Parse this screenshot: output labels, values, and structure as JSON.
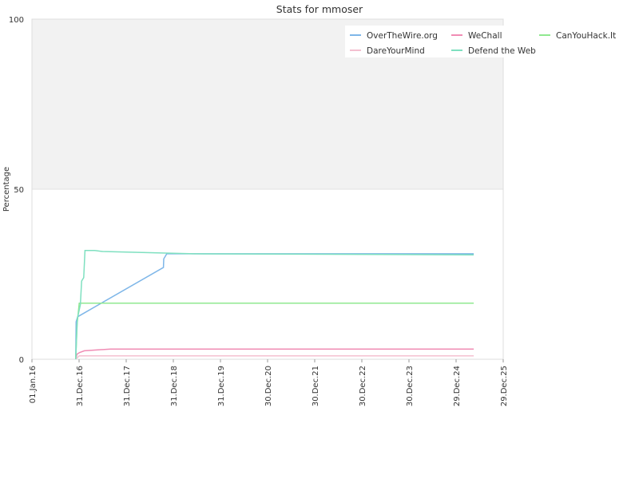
{
  "chart_data": {
    "type": "line",
    "title": "Stats for mmoser",
    "xlabel": "",
    "ylabel": "Percentage",
    "xlim": [
      "2016-01-01",
      "2025-12-29"
    ],
    "ylim": [
      0,
      100
    ],
    "y_ticks": [
      0,
      50,
      100
    ],
    "x_ticks": [
      {
        "date": "2016-01-01",
        "label": "01.Jan.16"
      },
      {
        "date": "2016-12-31",
        "label": "31.Dec.16"
      },
      {
        "date": "2017-12-31",
        "label": "31.Dec.17"
      },
      {
        "date": "2018-12-31",
        "label": "31.Dec.18"
      },
      {
        "date": "2019-12-31",
        "label": "31.Dec.19"
      },
      {
        "date": "2020-12-30",
        "label": "30.Dec.20"
      },
      {
        "date": "2021-12-30",
        "label": "30.Dec.21"
      },
      {
        "date": "2022-12-30",
        "label": "30.Dec.22"
      },
      {
        "date": "2023-12-30",
        "label": "30.Dec.23"
      },
      {
        "date": "2024-12-29",
        "label": "29.Dec.24"
      },
      {
        "date": "2025-12-29",
        "label": "29.Dec.25"
      }
    ],
    "bands": [
      {
        "from": 50,
        "to": 100,
        "color": "#f2f2f2"
      }
    ],
    "grid": true,
    "legend_position": "top-right",
    "series": [
      {
        "name": "OverTheWire.org",
        "color": "#7eb6e8",
        "points": [
          [
            "2016-12-05",
            0
          ],
          [
            "2016-12-08",
            11
          ],
          [
            "2016-12-20",
            12.5
          ],
          [
            "2018-10-15",
            27
          ],
          [
            "2018-10-18",
            29.5
          ],
          [
            "2018-11-10",
            31
          ],
          [
            "2025-05-15",
            31
          ]
        ]
      },
      {
        "name": "WeChall",
        "color": "#f08cb4",
        "points": [
          [
            "2016-12-05",
            0
          ],
          [
            "2016-12-15",
            1.5
          ],
          [
            "2017-01-05",
            2
          ],
          [
            "2017-02-10",
            2.5
          ],
          [
            "2017-05-01",
            2.7
          ],
          [
            "2017-09-01",
            3
          ],
          [
            "2025-05-15",
            3
          ]
        ]
      },
      {
        "name": "CanYouHack.It",
        "color": "#90e890",
        "points": [
          [
            "2016-12-05",
            0
          ],
          [
            "2016-12-15",
            10
          ],
          [
            "2017-01-01",
            16.5
          ],
          [
            "2025-05-15",
            16.5
          ]
        ]
      },
      {
        "name": "DareYourMind",
        "color": "#f4c0d0",
        "points": [
          [
            "2016-12-05",
            0
          ],
          [
            "2017-01-01",
            1
          ],
          [
            "2025-05-15",
            1
          ]
        ]
      },
      {
        "name": "Defend the Web",
        "color": "#7fe0c0",
        "points": [
          [
            "2016-12-05",
            0
          ],
          [
            "2016-12-18",
            12
          ],
          [
            "2017-01-10",
            16
          ],
          [
            "2017-01-20",
            23
          ],
          [
            "2017-02-05",
            24
          ],
          [
            "2017-02-15",
            32
          ],
          [
            "2017-05-01",
            32
          ],
          [
            "2017-07-01",
            31.7
          ],
          [
            "2018-01-01",
            31.5
          ],
          [
            "2019-06-01",
            31
          ],
          [
            "2025-05-15",
            30.7
          ]
        ]
      }
    ]
  }
}
